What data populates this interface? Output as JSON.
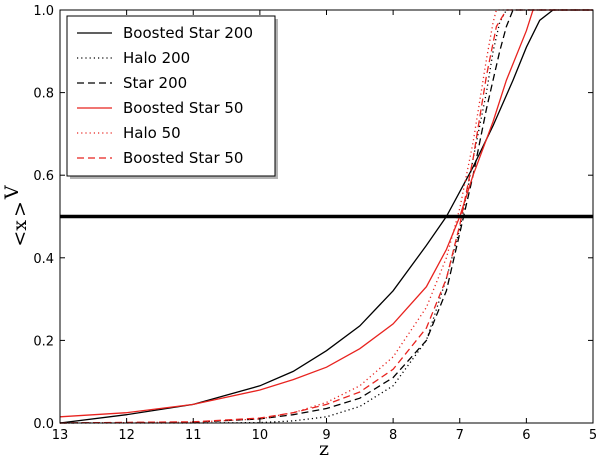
{
  "chart_data": {
    "type": "line",
    "xlabel": "z",
    "ylabel": "<x>V",
    "ylabel_parts": {
      "open": "<x",
      "close": ">",
      "sub": "V"
    },
    "xlim": [
      13,
      5
    ],
    "ylim": [
      0.0,
      1.0
    ],
    "xticks": [
      13,
      12,
      11,
      10,
      9,
      8,
      7,
      6,
      5
    ],
    "yticks": [
      0.0,
      0.2,
      0.4,
      0.6,
      0.8,
      1.0
    ],
    "ytick_labels": [
      "0.0",
      "0.2",
      "0.4",
      "0.6",
      "0.8",
      "1.0"
    ],
    "grid": false,
    "legend_position": "top-left",
    "reference_line": {
      "y": 0.5,
      "color": "#000000"
    },
    "series": [
      {
        "name": "Boosted Star 200",
        "color": "#000000",
        "dash": "solid",
        "x": [
          13,
          12,
          11,
          10,
          9.5,
          9,
          8.5,
          8,
          7.5,
          7.2,
          7,
          6.8,
          6.5,
          6.2,
          6,
          5.8,
          5.6,
          5.5,
          5
        ],
        "y": [
          0.0,
          0.02,
          0.045,
          0.09,
          0.125,
          0.175,
          0.235,
          0.32,
          0.43,
          0.5,
          0.56,
          0.62,
          0.72,
          0.83,
          0.91,
          0.975,
          1.0,
          1.0,
          1.0
        ]
      },
      {
        "name": "Halo 200",
        "color": "#000000",
        "dash": "dotted",
        "x": [
          13,
          11,
          10,
          9.5,
          9,
          8.5,
          8,
          7.5,
          7.2,
          7,
          6.9,
          6.8,
          6.6,
          6.5,
          6.4,
          6.3,
          5
        ],
        "y": [
          0.0,
          0.0,
          0.001,
          0.005,
          0.015,
          0.04,
          0.09,
          0.2,
          0.35,
          0.47,
          0.55,
          0.64,
          0.8,
          0.9,
          0.97,
          1.0,
          1.0
        ]
      },
      {
        "name": "Star 200",
        "color": "#000000",
        "dash": "dashed",
        "x": [
          13,
          11,
          10,
          9.5,
          9,
          8.5,
          8,
          7.5,
          7.2,
          7,
          6.8,
          6.6,
          6.4,
          6.3,
          6.2,
          5
        ],
        "y": [
          0.0,
          0.002,
          0.01,
          0.02,
          0.035,
          0.06,
          0.11,
          0.2,
          0.32,
          0.46,
          0.6,
          0.76,
          0.9,
          0.96,
          1.0,
          1.0
        ]
      },
      {
        "name": "Boosted Star 50",
        "color": "#e8231f",
        "dash": "solid",
        "x": [
          13,
          12,
          11,
          10,
          9.5,
          9,
          8.5,
          8,
          7.5,
          7.2,
          7,
          6.8,
          6.5,
          6.3,
          6,
          5.9,
          5
        ],
        "y": [
          0.015,
          0.025,
          0.045,
          0.08,
          0.105,
          0.135,
          0.18,
          0.24,
          0.33,
          0.42,
          0.5,
          0.6,
          0.73,
          0.83,
          0.95,
          1.0,
          1.0
        ]
      },
      {
        "name": "Halo 50",
        "color": "#e8231f",
        "dash": "dotted",
        "x": [
          13,
          11,
          10,
          9.5,
          9,
          8.5,
          8,
          7.5,
          7.2,
          7,
          6.8,
          6.6,
          6.5,
          6.45,
          5
        ],
        "y": [
          0.0,
          0.002,
          0.01,
          0.025,
          0.05,
          0.09,
          0.16,
          0.28,
          0.4,
          0.52,
          0.68,
          0.88,
          0.97,
          1.0,
          1.0
        ]
      },
      {
        "name": "Boosted Star 50",
        "color": "#e8231f",
        "dash": "dashed",
        "x": [
          13,
          11,
          10,
          9.5,
          9,
          8.5,
          8,
          7.5,
          7.2,
          7,
          6.8,
          6.6,
          6.45,
          6.3,
          5
        ],
        "y": [
          0.0,
          0.003,
          0.012,
          0.025,
          0.045,
          0.075,
          0.13,
          0.23,
          0.35,
          0.48,
          0.64,
          0.84,
          0.96,
          1.0,
          1.0
        ]
      }
    ]
  }
}
